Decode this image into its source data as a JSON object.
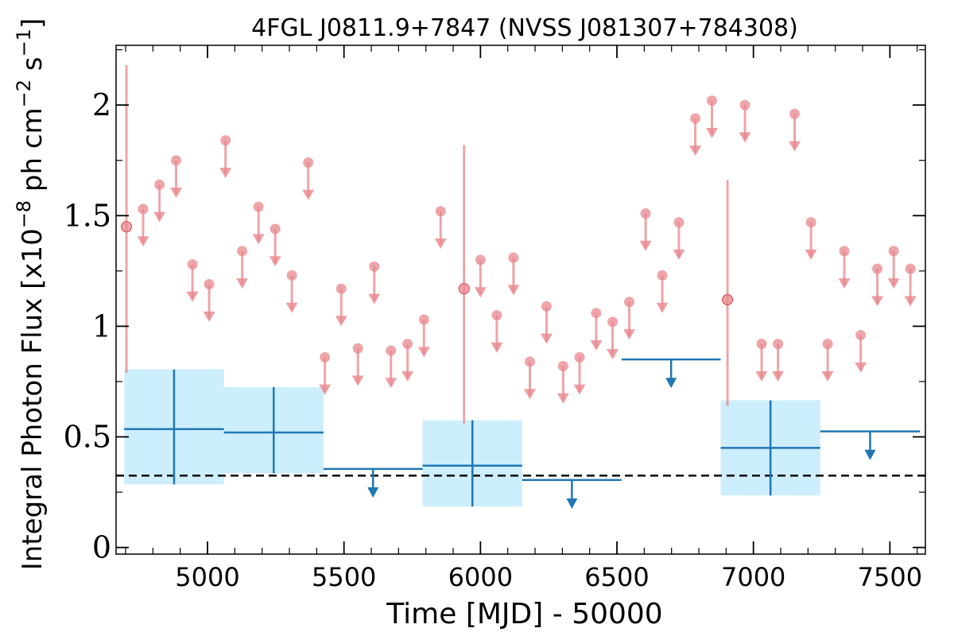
{
  "chart_data": {
    "type": "scatter",
    "title": "4FGL J0811.9+7847 (NVSS J081307+784308)",
    "xlabel": "Time [MJD] - 50000",
    "ylabel": "Integral Photon Flux [x10",
    "ylabel_exp1": "−8",
    "ylabel_mid": " ph cm",
    "ylabel_exp2": "−2",
    "ylabel_mid2": " s",
    "ylabel_exp3": "−1",
    "ylabel_end": "]",
    "xlim": [
      4665,
      7630
    ],
    "ylim": [
      -0.03,
      2.27
    ],
    "xticks": [
      5000,
      5500,
      6000,
      6500,
      7000,
      7500
    ],
    "yticks": [
      0,
      0.5,
      1,
      1.5,
      2
    ],
    "ytick_labels": [
      "0",
      "0.5",
      "1",
      "1.5",
      "2"
    ],
    "reference_level": 0.325,
    "colors": {
      "short_bins": "#e8878c",
      "long_bins": "#1f77b4",
      "long_bins_band": "#cdeefd",
      "reference_line": "#000000"
    },
    "short_bin_detections": [
      {
        "x": 4703,
        "y": 1.45,
        "ylo": 0.79,
        "yhi": 2.18
      },
      {
        "x": 5940,
        "y": 1.17,
        "ylo": 0.56,
        "yhi": 1.82
      },
      {
        "x": 6905,
        "y": 1.12,
        "ylo": 0.64,
        "yhi": 1.66
      }
    ],
    "short_bin_upper_limits": [
      {
        "x": 4764,
        "y": 1.53
      },
      {
        "x": 4824,
        "y": 1.64
      },
      {
        "x": 4885,
        "y": 1.75
      },
      {
        "x": 4945,
        "y": 1.28
      },
      {
        "x": 5006,
        "y": 1.19
      },
      {
        "x": 5066,
        "y": 1.84
      },
      {
        "x": 5127,
        "y": 1.34
      },
      {
        "x": 5187,
        "y": 1.54
      },
      {
        "x": 5248,
        "y": 1.44
      },
      {
        "x": 5309,
        "y": 1.23
      },
      {
        "x": 5369,
        "y": 1.74
      },
      {
        "x": 5430,
        "y": 0.86
      },
      {
        "x": 5490,
        "y": 1.17
      },
      {
        "x": 5551,
        "y": 0.9
      },
      {
        "x": 5611,
        "y": 1.27
      },
      {
        "x": 5672,
        "y": 0.89
      },
      {
        "x": 5733,
        "y": 0.92
      },
      {
        "x": 5793,
        "y": 1.03
      },
      {
        "x": 5854,
        "y": 1.52
      },
      {
        "x": 6000,
        "y": 1.3
      },
      {
        "x": 6060,
        "y": 1.05
      },
      {
        "x": 6121,
        "y": 1.31
      },
      {
        "x": 6181,
        "y": 0.84
      },
      {
        "x": 6242,
        "y": 1.09
      },
      {
        "x": 6303,
        "y": 0.82
      },
      {
        "x": 6363,
        "y": 0.86
      },
      {
        "x": 6424,
        "y": 1.06
      },
      {
        "x": 6484,
        "y": 1.02
      },
      {
        "x": 6545,
        "y": 1.11
      },
      {
        "x": 6605,
        "y": 1.51
      },
      {
        "x": 6666,
        "y": 1.23
      },
      {
        "x": 6727,
        "y": 1.47
      },
      {
        "x": 6787,
        "y": 1.94
      },
      {
        "x": 6848,
        "y": 2.02
      },
      {
        "x": 6969,
        "y": 2.0
      },
      {
        "x": 7030,
        "y": 0.92
      },
      {
        "x": 7090,
        "y": 0.92
      },
      {
        "x": 7151,
        "y": 1.96
      },
      {
        "x": 7211,
        "y": 1.47
      },
      {
        "x": 7272,
        "y": 0.92
      },
      {
        "x": 7333,
        "y": 1.34
      },
      {
        "x": 7393,
        "y": 0.96
      },
      {
        "x": 7454,
        "y": 1.26
      },
      {
        "x": 7514,
        "y": 1.34
      },
      {
        "x": 7575,
        "y": 1.26
      }
    ],
    "long_bin_detections": [
      {
        "x0": 4695,
        "x1": 5060,
        "y": 0.535,
        "ylo": 0.285,
        "yhi": 0.805
      },
      {
        "x0": 5060,
        "x1": 5425,
        "y": 0.52,
        "ylo": 0.335,
        "yhi": 0.725
      },
      {
        "x0": 5788,
        "x1": 6153,
        "y": 0.37,
        "ylo": 0.185,
        "yhi": 0.575
      },
      {
        "x0": 6880,
        "x1": 7245,
        "y": 0.45,
        "ylo": 0.235,
        "yhi": 0.665
      }
    ],
    "long_bin_upper_limits": [
      {
        "x0": 5425,
        "x1": 5788,
        "y": 0.355
      },
      {
        "x0": 6153,
        "x1": 6517,
        "y": 0.305
      },
      {
        "x0": 6517,
        "x1": 6880,
        "y": 0.85
      },
      {
        "x0": 7245,
        "x1": 7610,
        "y": 0.525
      }
    ]
  }
}
